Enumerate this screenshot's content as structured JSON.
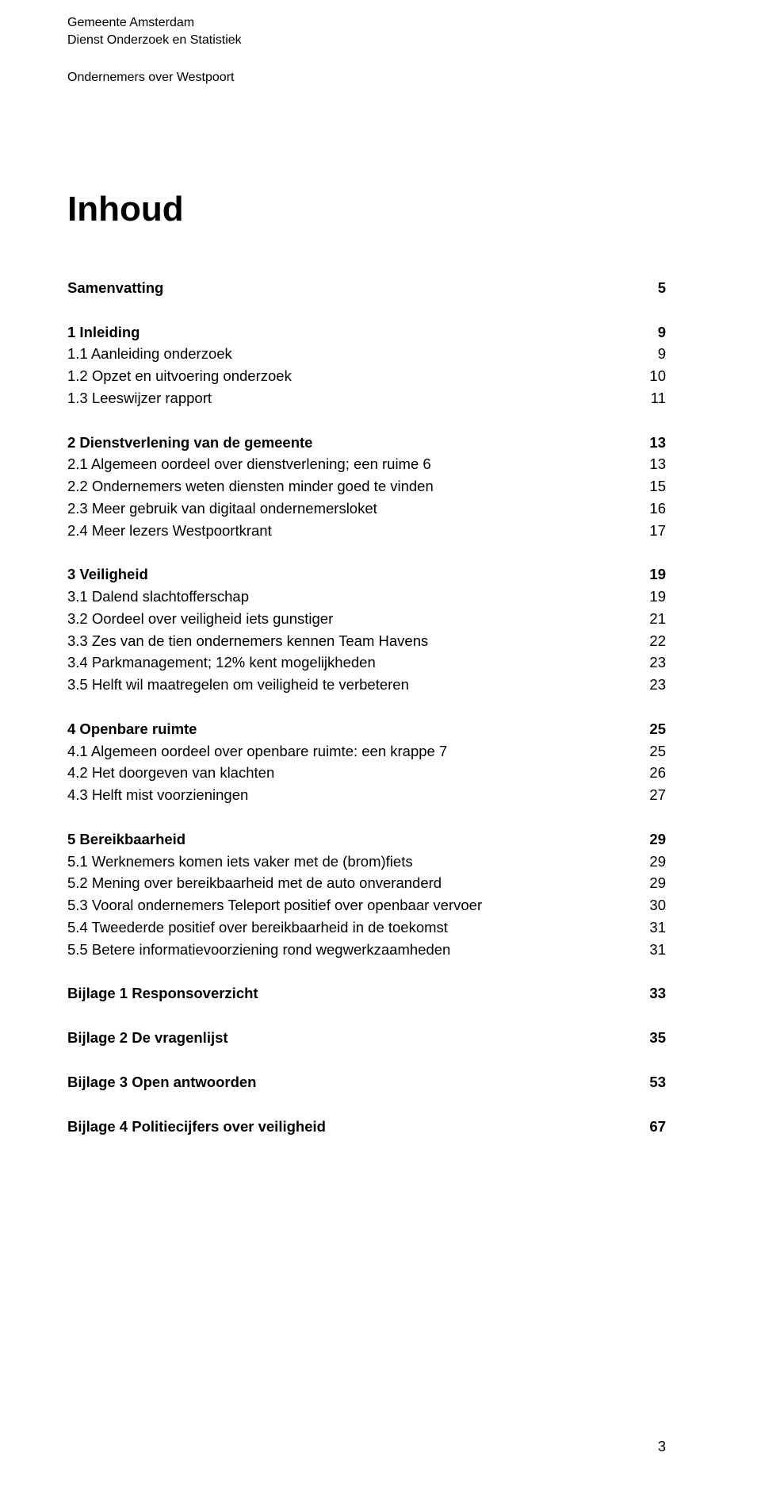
{
  "header": {
    "line1": "Gemeente Amsterdam",
    "line2": "Dienst Onderzoek en Statistiek",
    "subtitle": "Ondernemers over Westpoort"
  },
  "title": "Inhoud",
  "toc_groups": [
    [
      {
        "label": "Samenvatting",
        "page": "5",
        "bold": true
      }
    ],
    [
      {
        "label": "1 Inleiding",
        "page": "9",
        "bold": true
      },
      {
        "label": "1.1 Aanleiding onderzoek",
        "page": "9",
        "bold": false
      },
      {
        "label": "1.2 Opzet en uitvoering onderzoek",
        "page": "10",
        "bold": false
      },
      {
        "label": "1.3 Leeswijzer rapport",
        "page": "11",
        "bold": false
      }
    ],
    [
      {
        "label": "2 Dienstverlening van de gemeente",
        "page": "13",
        "bold": true
      },
      {
        "label": "2.1 Algemeen oordeel over dienstverlening; een ruime 6",
        "page": "13",
        "bold": false
      },
      {
        "label": "2.2 Ondernemers weten diensten minder goed te vinden",
        "page": "15",
        "bold": false
      },
      {
        "label": "2.3 Meer gebruik van digitaal ondernemersloket",
        "page": "16",
        "bold": false
      },
      {
        "label": "2.4 Meer lezers Westpoortkrant",
        "page": "17",
        "bold": false
      }
    ],
    [
      {
        "label": "3 Veiligheid",
        "page": "19",
        "bold": true
      },
      {
        "label": "3.1 Dalend slachtofferschap",
        "page": "19",
        "bold": false
      },
      {
        "label": "3.2 Oordeel over veiligheid iets gunstiger",
        "page": "21",
        "bold": false
      },
      {
        "label": "3.3 Zes van de tien ondernemers kennen Team Havens",
        "page": "22",
        "bold": false
      },
      {
        "label": "3.4 Parkmanagement; 12% kent mogelijkheden",
        "page": "23",
        "bold": false
      },
      {
        "label": "3.5 Helft wil maatregelen om veiligheid te verbeteren",
        "page": "23",
        "bold": false
      }
    ],
    [
      {
        "label": "4 Openbare ruimte",
        "page": "25",
        "bold": true
      },
      {
        "label": "4.1 Algemeen oordeel over openbare ruimte: een krappe 7",
        "page": "25",
        "bold": false
      },
      {
        "label": "4.2 Het doorgeven van klachten",
        "page": "26",
        "bold": false
      },
      {
        "label": "4.3 Helft mist voorzieningen",
        "page": "27",
        "bold": false
      }
    ],
    [
      {
        "label": "5 Bereikbaarheid",
        "page": "29",
        "bold": true
      },
      {
        "label": "5.1 Werknemers komen iets vaker met de (brom)fiets",
        "page": "29",
        "bold": false
      },
      {
        "label": "5.2 Mening over bereikbaarheid met de auto onveranderd",
        "page": "29",
        "bold": false
      },
      {
        "label": "5.3 Vooral ondernemers Teleport positief over openbaar vervoer",
        "page": "30",
        "bold": false
      },
      {
        "label": "5.4 Tweederde positief over bereikbaarheid in de toekomst",
        "page": "31",
        "bold": false
      },
      {
        "label": "5.5 Betere informatievoorziening rond wegwerkzaamheden",
        "page": "31",
        "bold": false
      }
    ],
    [
      {
        "label": "Bijlage 1 Responsoverzicht",
        "page": "33",
        "bold": true
      }
    ],
    [
      {
        "label": "Bijlage 2 De vragenlijst",
        "page": "35",
        "bold": true
      }
    ],
    [
      {
        "label": "Bijlage 3 Open antwoorden",
        "page": "53",
        "bold": true
      }
    ],
    [
      {
        "label": "Bijlage 4 Politiecijfers over veiligheid",
        "page": "67",
        "bold": true
      }
    ]
  ],
  "page_number": "3"
}
